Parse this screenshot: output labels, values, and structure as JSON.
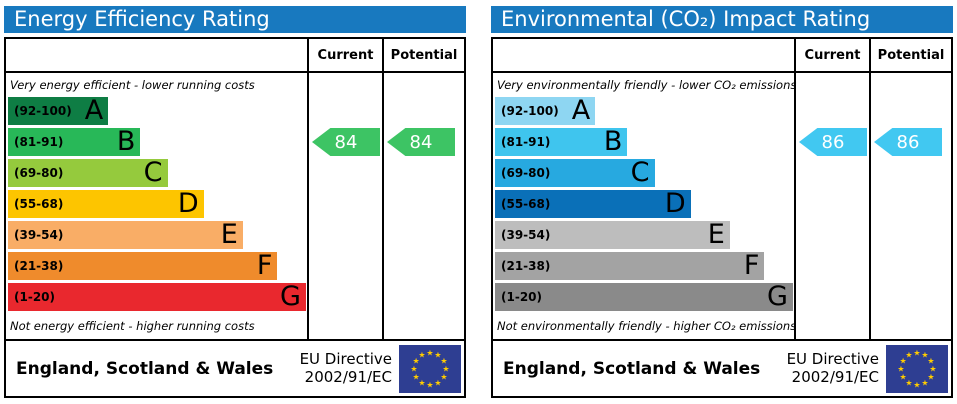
{
  "theme": {
    "header_bg": "#1879bf",
    "border_color": "#000000",
    "eu_flag_bg": "#2e3e92",
    "eu_star_color": "#ffcc00"
  },
  "panels": [
    {
      "title": "Energy Efficiency Rating",
      "col_current": "Current",
      "col_potential": "Potential",
      "top_note": "Very energy efficient - lower running costs",
      "bottom_note": "Not energy efficient - higher running costs",
      "bands": [
        {
          "letter": "A",
          "range": "(92-100)",
          "color": "#0e7d44",
          "width_pct": 33.3
        },
        {
          "letter": "B",
          "range": "(81-91)",
          "color": "#28b858",
          "width_pct": 44
        },
        {
          "letter": "C",
          "range": "(69-80)",
          "color": "#95ca3d",
          "width_pct": 53
        },
        {
          "letter": "D",
          "range": "(55-68)",
          "color": "#fdc500",
          "width_pct": 65
        },
        {
          "letter": "E",
          "range": "(39-54)",
          "color": "#f9ad66",
          "width_pct": 78
        },
        {
          "letter": "F",
          "range": "(21-38)",
          "color": "#ef8b2c",
          "width_pct": 89.5
        },
        {
          "letter": "G",
          "range": "(1-20)",
          "color": "#e9282e",
          "width_pct": 99
        }
      ],
      "current": {
        "value": "84",
        "band_index": 1,
        "color": "#3dc464"
      },
      "potential": {
        "value": "84",
        "band_index": 1,
        "color": "#3dc464"
      },
      "footer": {
        "region": "England, Scotland & Wales",
        "directive_line1": "EU Directive",
        "directive_line2": "2002/91/EC"
      }
    },
    {
      "title": "Environmental (CO₂) Impact Rating",
      "col_current": "Current",
      "col_potential": "Potential",
      "top_note": "Very environmentally friendly - lower CO₂ emissions",
      "bottom_note": "Not environmentally friendly - higher CO₂ emissions",
      "bands": [
        {
          "letter": "A",
          "range": "(92-100)",
          "color": "#8ed6f2",
          "width_pct": 33.3
        },
        {
          "letter": "B",
          "range": "(81-91)",
          "color": "#3fc5ee",
          "width_pct": 44
        },
        {
          "letter": "C",
          "range": "(69-80)",
          "color": "#27a9e0",
          "width_pct": 53
        },
        {
          "letter": "D",
          "range": "(55-68)",
          "color": "#0a70b8",
          "width_pct": 65
        },
        {
          "letter": "E",
          "range": "(39-54)",
          "color": "#bdbdbd",
          "width_pct": 78
        },
        {
          "letter": "F",
          "range": "(21-38)",
          "color": "#a3a3a3",
          "width_pct": 89.5
        },
        {
          "letter": "G",
          "range": "(1-20)",
          "color": "#8a8a8a",
          "width_pct": 99
        }
      ],
      "current": {
        "value": "86",
        "band_index": 1,
        "color": "#41c8f1"
      },
      "potential": {
        "value": "86",
        "band_index": 1,
        "color": "#41c8f1"
      },
      "footer": {
        "region": "England, Scotland & Wales",
        "directive_line1": "EU Directive",
        "directive_line2": "2002/91/EC"
      }
    }
  ],
  "chart_data": [
    {
      "type": "bar",
      "title": "Energy Efficiency Rating",
      "categories": [
        "A (92-100)",
        "B (81-91)",
        "C (69-80)",
        "D (55-68)",
        "E (39-54)",
        "F (21-38)",
        "G (1-20)"
      ],
      "band_ranges": [
        [
          92,
          100
        ],
        [
          81,
          91
        ],
        [
          69,
          80
        ],
        [
          55,
          68
        ],
        [
          39,
          54
        ],
        [
          21,
          38
        ],
        [
          1,
          20
        ]
      ],
      "series": [
        {
          "name": "Current",
          "values": [
            84
          ],
          "band": "B"
        },
        {
          "name": "Potential",
          "values": [
            84
          ],
          "band": "B"
        }
      ],
      "scale": [
        1,
        100
      ],
      "annotations": [
        "Very energy efficient - lower running costs",
        "Not energy efficient - higher running costs"
      ]
    },
    {
      "type": "bar",
      "title": "Environmental (CO₂) Impact Rating",
      "categories": [
        "A (92-100)",
        "B (81-91)",
        "C (69-80)",
        "D (55-68)",
        "E (39-54)",
        "F (21-38)",
        "G (1-20)"
      ],
      "band_ranges": [
        [
          92,
          100
        ],
        [
          81,
          91
        ],
        [
          69,
          80
        ],
        [
          55,
          68
        ],
        [
          39,
          54
        ],
        [
          21,
          38
        ],
        [
          1,
          20
        ]
      ],
      "series": [
        {
          "name": "Current",
          "values": [
            86
          ],
          "band": "B"
        },
        {
          "name": "Potential",
          "values": [
            86
          ],
          "band": "B"
        }
      ],
      "scale": [
        1,
        100
      ],
      "annotations": [
        "Very environmentally friendly - lower CO₂ emissions",
        "Not environmentally friendly - higher CO₂ emissions"
      ]
    }
  ]
}
